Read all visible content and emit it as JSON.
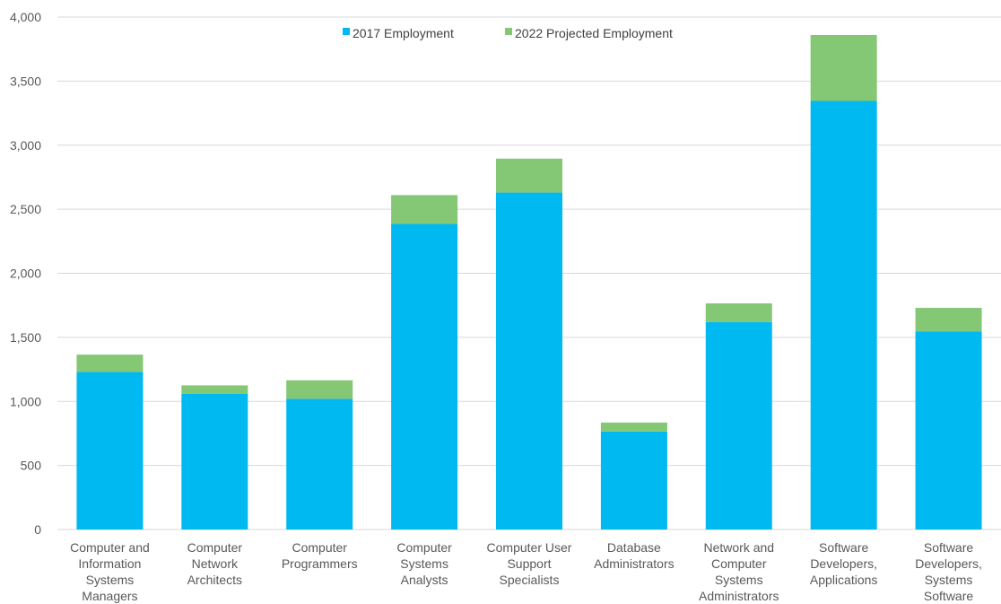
{
  "chart_data": {
    "type": "bar",
    "stacked": true,
    "title": "",
    "xlabel": "",
    "ylabel": "",
    "ylim": [
      0,
      4000
    ],
    "yticks": [
      0,
      500,
      1000,
      1500,
      2000,
      2500,
      3000,
      3500,
      4000
    ],
    "ytick_labels": [
      "0",
      "500",
      "1,000",
      "1,500",
      "2,000",
      "2,500",
      "3,000",
      "3,500",
      "4,000"
    ],
    "grid": true,
    "legend_position": "top-center",
    "categories": [
      [
        "Computer and",
        "Information",
        "Systems",
        "Managers"
      ],
      [
        "Computer",
        "Network",
        "Architects"
      ],
      [
        "Computer",
        "Programmers"
      ],
      [
        "Computer",
        "Systems",
        "Analysts"
      ],
      [
        "Computer User",
        "Support",
        "Specialists"
      ],
      [
        "Database",
        "Administrators"
      ],
      [
        "Network and",
        "Computer",
        "Systems",
        "Administrators"
      ],
      [
        "Software",
        "Developers,",
        "Applications"
      ],
      [
        "Software",
        "Developers,",
        "Systems",
        "Software"
      ]
    ],
    "series": [
      {
        "name": "2017 Employment",
        "color": "#00B9F1",
        "values": [
          1230,
          1060,
          1020,
          2385,
          2630,
          765,
          1620,
          3345,
          1545
        ]
      },
      {
        "name": "2022 Projected Employment",
        "color": "#84C774",
        "values": [
          135,
          65,
          145,
          225,
          265,
          70,
          145,
          515,
          185
        ]
      }
    ]
  }
}
